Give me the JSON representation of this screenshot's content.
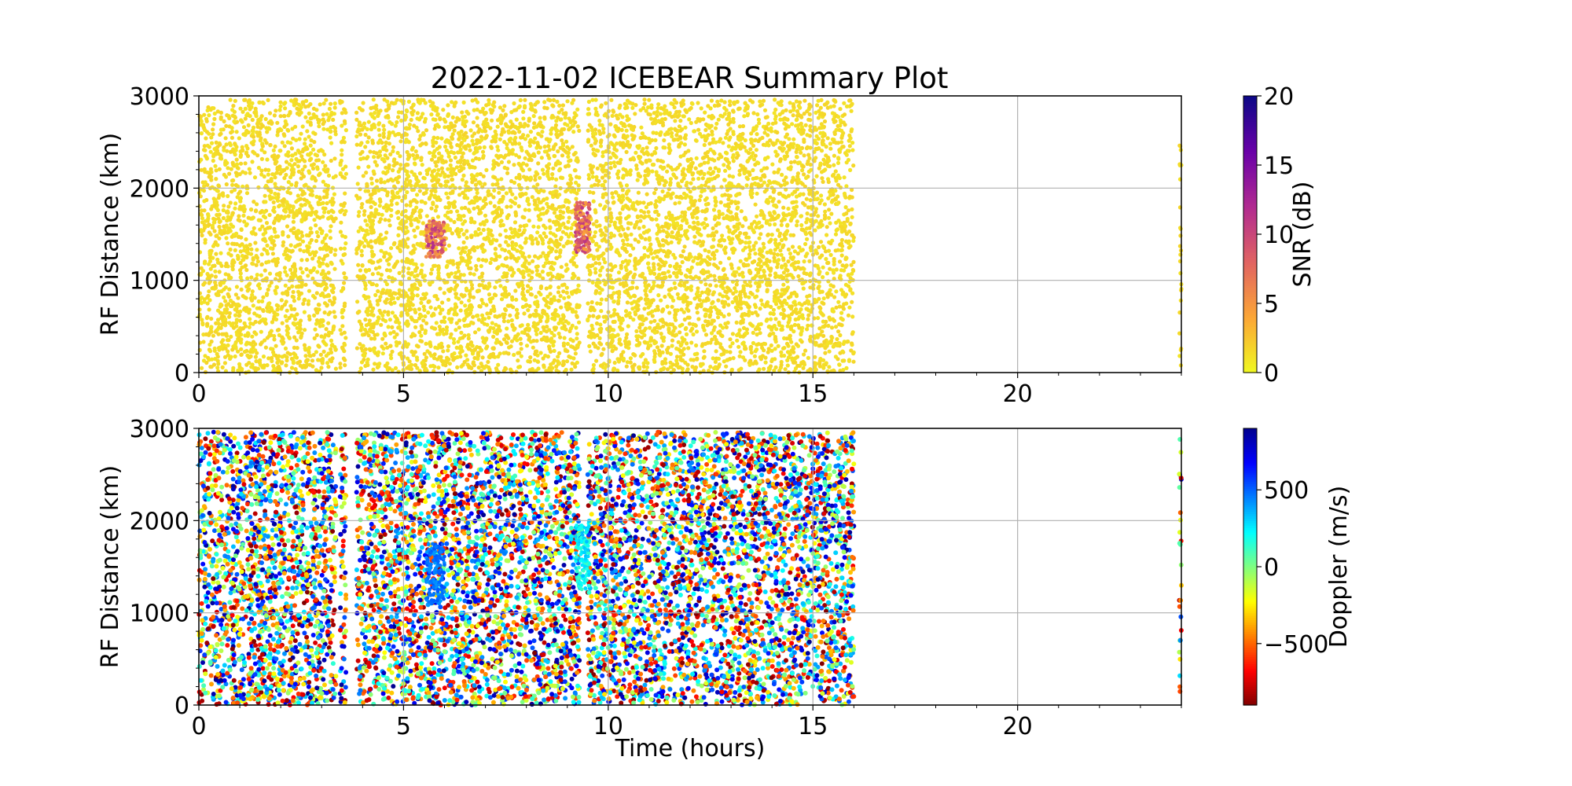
{
  "title": "2022-11-02 ICEBEAR Summary Plot",
  "chart_data": [
    {
      "type": "scatter",
      "panel": "snr",
      "xlabel": "",
      "ylabel": "RF Distance (km)",
      "xlim": [
        0,
        24
      ],
      "ylim": [
        0,
        3000
      ],
      "x_ticks": [
        0,
        5,
        10,
        15,
        20
      ],
      "x_tick_labels": [
        "0",
        "5",
        "10",
        "15",
        "20"
      ],
      "y_ticks": [
        0,
        1000,
        2000,
        3000
      ],
      "y_tick_labels": [
        "0",
        "1000",
        "2000",
        "3000"
      ],
      "grid": true,
      "colorbar": {
        "label": "SNR (dB)",
        "range": [
          0,
          20
        ],
        "ticks": [
          0,
          5,
          10,
          15,
          20
        ],
        "tick_labels": [
          "0",
          "5",
          "10",
          "15",
          "20"
        ],
        "colormap": "plasma_r",
        "colors": [
          "#f0f921",
          "#fca636",
          "#e16462",
          "#b12a90",
          "#6a00a8",
          "#0d0887"
        ]
      },
      "data_coverage": {
        "hours": [
          [
            0,
            3.35
          ],
          [
            3.45,
            3.6
          ],
          [
            3.85,
            9.3
          ],
          [
            9.5,
            16.0
          ],
          [
            23.95,
            24.0
          ]
        ],
        "range_km": [
          0,
          2960
        ]
      },
      "features": [
        {
          "time_h": [
            5.55,
            6.0
          ],
          "range_km": [
            1250,
            1650
          ],
          "snr_db": [
            4,
            12
          ]
        },
        {
          "time_h": [
            9.2,
            9.55
          ],
          "range_km": [
            1300,
            1850
          ],
          "snr_db": [
            4,
            12
          ]
        }
      ],
      "typical_value": 1
    },
    {
      "type": "scatter",
      "panel": "doppler",
      "xlabel": "Time (hours)",
      "ylabel": "RF Distance (km)",
      "xlim": [
        0,
        24
      ],
      "ylim": [
        0,
        3000
      ],
      "x_ticks": [
        0,
        5,
        10,
        15,
        20
      ],
      "x_tick_labels": [
        "0",
        "5",
        "10",
        "15",
        "20"
      ],
      "y_ticks": [
        0,
        1000,
        2000,
        3000
      ],
      "y_tick_labels": [
        "0",
        "1000",
        "2000",
        "3000"
      ],
      "grid": true,
      "colorbar": {
        "label": "Doppler (m/s)",
        "range": [
          -900,
          900
        ],
        "ticks": [
          -500,
          0,
          500
        ],
        "tick_labels": [
          "−500",
          "0",
          "500"
        ],
        "colormap": "jet_r",
        "colors": [
          "#800000",
          "#ff0000",
          "#ff8000",
          "#ffff00",
          "#80ff80",
          "#00ffff",
          "#0080ff",
          "#0000ff",
          "#00008f"
        ]
      },
      "data_coverage": {
        "hours": [
          [
            0,
            3.35
          ],
          [
            3.45,
            3.6
          ],
          [
            3.85,
            9.3
          ],
          [
            9.5,
            16.0
          ],
          [
            23.95,
            24.0
          ]
        ],
        "range_km": [
          0,
          2960
        ]
      },
      "features": [
        {
          "time_h": [
            5.55,
            6.0
          ],
          "range_km": [
            1100,
            1750
          ],
          "doppler_ms": [
            400,
            550
          ]
        },
        {
          "time_h": [
            9.2,
            9.55
          ],
          "range_km": [
            1250,
            1950
          ],
          "doppler_ms": [
            100,
            350
          ]
        }
      ],
      "typical_value": "random"
    }
  ]
}
